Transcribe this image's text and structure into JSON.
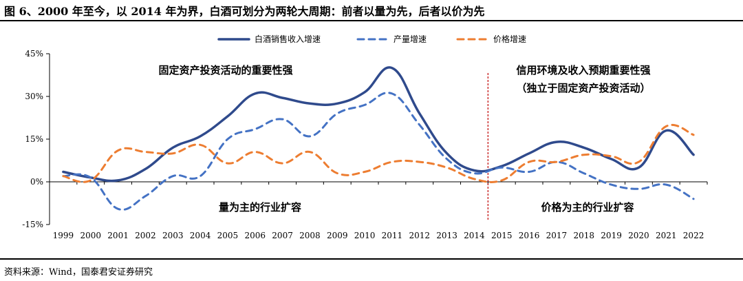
{
  "figure": {
    "title": "图 6、2000 年至今，以 2014 年为界，白酒可划分为两轮大周期：前者以量为先，后者以价为先",
    "source": "资料来源：Wind，国泰君安证券研究"
  },
  "chart_data": {
    "type": "line",
    "categories": [
      "1999",
      "2000",
      "2001",
      "2002",
      "2003",
      "2004",
      "2005",
      "2006",
      "2007",
      "2008",
      "2009",
      "2010",
      "2011",
      "2012",
      "2013",
      "2014",
      "2015",
      "2016",
      "2017",
      "2018",
      "2019",
      "2020",
      "2021",
      "2022"
    ],
    "series": [
      {
        "name": "白酒销售收入增速",
        "color": "#2F4A8C",
        "dash": "solid",
        "width": 3.5,
        "values": [
          3.5,
          1.5,
          0.5,
          4.5,
          12,
          16,
          23,
          31,
          29.5,
          27.5,
          27.5,
          31.5,
          40,
          24,
          10,
          4,
          5.5,
          10,
          14,
          12,
          8,
          5,
          18,
          9.5
        ]
      },
      {
        "name": "产量增速",
        "color": "#4472C4",
        "dash": "dashed",
        "width": 3,
        "values": [
          2,
          1.5,
          -9.5,
          -5,
          2,
          2,
          15,
          18.5,
          22,
          16,
          24,
          27,
          31,
          20,
          8,
          3,
          5,
          3.5,
          7,
          3,
          -1,
          -2.5,
          -1,
          -6
        ]
      },
      {
        "name": "价格增速",
        "color": "#ED7D31",
        "dash": "dashed",
        "width": 3,
        "values": [
          2,
          0.5,
          11,
          10.5,
          10,
          13,
          6.5,
          10.5,
          6.5,
          10.5,
          3,
          3.5,
          7,
          7,
          5,
          1,
          0.5,
          7,
          7,
          9.5,
          9,
          7,
          19.5,
          16.5
        ]
      }
    ],
    "y_ticks": [
      "45%",
      "30%",
      "15%",
      "0%",
      "-15%"
    ],
    "ylim": [
      -15,
      45
    ],
    "divider_after": "2014",
    "annotations": {
      "top_left": "固定资产投资活动的重要性强",
      "top_right_1": "信用环境及收入预期重要性强",
      "top_right_2": "（独立于固定资产投资活动）",
      "bottom_left": "量为主的行业扩容",
      "bottom_right": "价格为主的行业扩容"
    },
    "legend_placement": "top"
  }
}
